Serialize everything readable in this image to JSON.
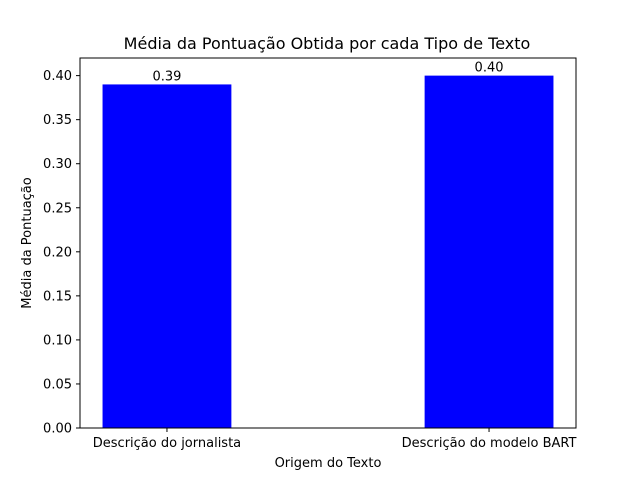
{
  "chart_data": {
    "type": "bar",
    "title": "Média da Pontuação Obtida por cada Tipo de Texto",
    "xlabel": "Origem do Texto",
    "ylabel": "Média da Pontuação",
    "categories": [
      "Descrição do jornalista",
      "Descrição do modelo BART"
    ],
    "values": [
      0.39,
      0.4
    ],
    "data_labels": [
      "0.39",
      "0.40"
    ],
    "ylim": [
      0,
      0.42
    ],
    "yticks": [
      0.0,
      0.05,
      0.1,
      0.15,
      0.2,
      0.25,
      0.3,
      0.35,
      0.4
    ],
    "ytick_labels": [
      "0.00",
      "0.05",
      "0.10",
      "0.15",
      "0.20",
      "0.25",
      "0.30",
      "0.35",
      "0.40"
    ],
    "grid": false,
    "legend": "none",
    "bar_color": "#0000ff"
  }
}
